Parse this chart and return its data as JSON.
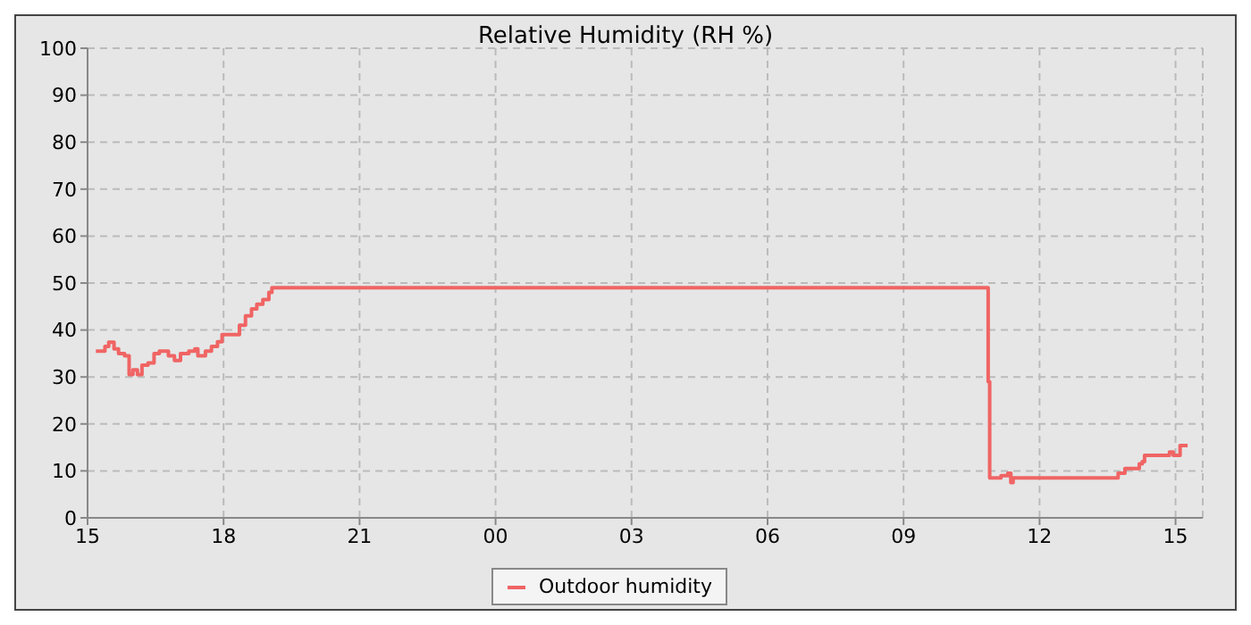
{
  "chart_data": {
    "type": "step",
    "title": "Relative Humidity (RH %)",
    "xlim": [
      "2000-01-01T15:00",
      "2000-01-02T15:36"
    ],
    "xticks": [
      {
        "value": "2000-01-01T15:00",
        "label": "15"
      },
      {
        "value": "2000-01-01T18:00",
        "label": "18"
      },
      {
        "value": "2000-01-01T21:00",
        "label": "21"
      },
      {
        "value": "2000-01-02T00:00",
        "label": "00"
      },
      {
        "value": "2000-01-02T03:00",
        "label": "03"
      },
      {
        "value": "2000-01-02T06:00",
        "label": "06"
      },
      {
        "value": "2000-01-02T09:00",
        "label": "09"
      },
      {
        "value": "2000-01-02T12:00",
        "label": "12"
      },
      {
        "value": "2000-01-02T15:00",
        "label": "15"
      }
    ],
    "ylim": [
      0,
      100
    ],
    "yticks": [
      0,
      10,
      20,
      30,
      40,
      50,
      60,
      70,
      80,
      90,
      100
    ],
    "grid": true,
    "legend": "bottom",
    "marker": "none",
    "line_style": "solid",
    "series": [
      {
        "name": "Outdoor humidity",
        "color": "#f06464",
        "x": [
          "2000-01-01T15:11",
          "2000-01-01T15:23",
          "2000-01-01T15:28",
          "2000-01-01T15:35",
          "2000-01-01T15:41",
          "2000-01-01T15:49",
          "2000-01-01T15:55",
          "2000-01-01T16:00",
          "2000-01-01T16:06",
          "2000-01-01T16:12",
          "2000-01-01T16:20",
          "2000-01-01T16:28",
          "2000-01-01T16:35",
          "2000-01-01T16:47",
          "2000-01-01T16:55",
          "2000-01-01T17:03",
          "2000-01-01T17:14",
          "2000-01-01T17:22",
          "2000-01-01T17:26",
          "2000-01-01T17:36",
          "2000-01-01T17:44",
          "2000-01-01T17:52",
          "2000-01-01T17:58",
          "2000-01-01T18:13",
          "2000-01-01T18:21",
          "2000-01-01T18:29",
          "2000-01-01T18:37",
          "2000-01-01T18:44",
          "2000-01-01T18:52",
          "2000-01-01T19:00",
          "2000-01-01T19:04",
          "2000-01-02T10:52",
          "2000-01-02T10:54",
          "2000-01-02T11:09",
          "2000-01-02T11:18",
          "2000-01-02T11:22",
          "2000-01-02T11:25",
          "2000-01-02T13:44",
          "2000-01-02T13:53",
          "2000-01-02T14:00",
          "2000-01-02T14:12",
          "2000-01-02T14:16",
          "2000-01-02T14:19",
          "2000-01-02T14:52",
          "2000-01-02T14:57",
          "2000-01-02T15:06",
          "2000-01-02T15:16"
        ],
        "values": [
          35.5,
          36.5,
          37.4,
          36,
          35,
          34.5,
          30.5,
          31.5,
          30.5,
          32.5,
          33,
          35,
          35.5,
          34.5,
          33.5,
          35,
          35.5,
          36,
          34.5,
          35.5,
          36.5,
          37.5,
          39,
          39,
          41,
          43,
          44.5,
          45.5,
          46.5,
          48,
          49,
          29,
          8.5,
          9,
          9.5,
          7.5,
          8.5,
          9.5,
          10.5,
          10.5,
          11.5,
          12,
          13.3,
          14,
          13.3,
          15.4,
          15.4
        ]
      }
    ]
  }
}
